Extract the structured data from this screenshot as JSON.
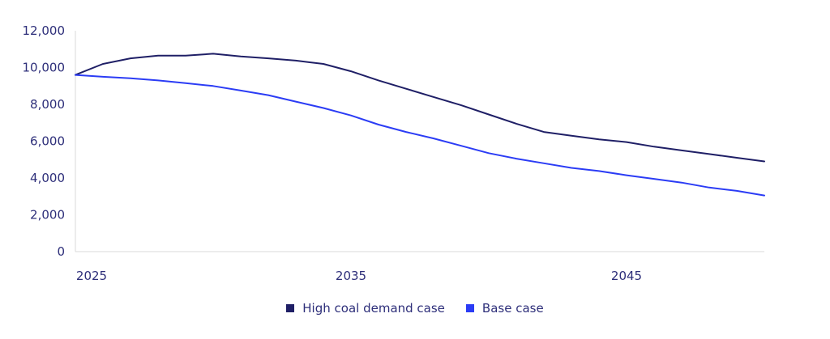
{
  "chart_data": {
    "type": "line",
    "x": [
      2025,
      2026,
      2027,
      2028,
      2029,
      2030,
      2031,
      2032,
      2033,
      2034,
      2035,
      2036,
      2037,
      2038,
      2039,
      2040,
      2041,
      2042,
      2043,
      2044,
      2045,
      2046,
      2047,
      2048,
      2049,
      2050
    ],
    "series": [
      {
        "name": "High coal demand case",
        "color": "#1f1f66",
        "values": [
          9600,
          10200,
          10500,
          10650,
          10650,
          10750,
          10600,
          10500,
          10380,
          10200,
          9800,
          9300,
          8850,
          8400,
          7950,
          7450,
          6950,
          6500,
          6300,
          6100,
          5950,
          5700,
          5500,
          5300,
          5100,
          4900
        ]
      },
      {
        "name": "Base case",
        "color": "#2b3cf5",
        "values": [
          9600,
          9500,
          9420,
          9300,
          9150,
          9000,
          8750,
          8500,
          8150,
          7800,
          7400,
          6900,
          6500,
          6150,
          5750,
          5350,
          5050,
          4800,
          4550,
          4380,
          4150,
          3950,
          3750,
          3480,
          3300,
          3050
        ]
      }
    ],
    "yticks": [
      "0",
      "2,000",
      "4,000",
      "6,000",
      "8,000",
      "10,000",
      "12,000"
    ],
    "xticks": [
      "2025",
      "2035",
      "2045"
    ],
    "xtick_years": [
      2025,
      2035,
      2045
    ],
    "ylim": [
      0,
      12000
    ],
    "xlim": [
      2025,
      2050
    ],
    "grid": false,
    "legend_position": "bottom-center",
    "title": "",
    "xlabel": "",
    "ylabel": ""
  }
}
